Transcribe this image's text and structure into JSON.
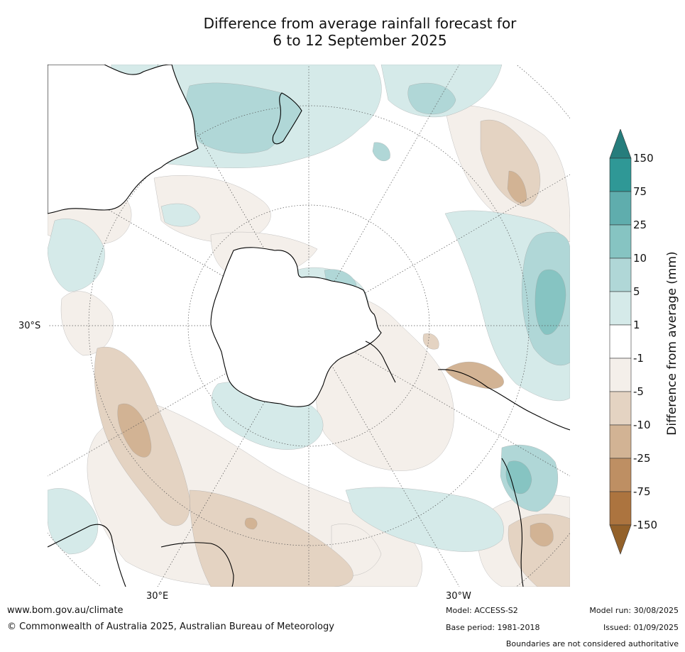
{
  "title": {
    "line1": "Difference from average rainfall forecast for",
    "line2": "6 to 12 September 2025"
  },
  "map": {
    "projection": "south-polar stereographic",
    "lat_label": "30°S",
    "lon_labels": {
      "east": "30°E",
      "west": "30°W"
    },
    "colors": {
      "plus_150": "#267d7c",
      "plus_75": "#2f9896",
      "plus_25": "#5fadad",
      "plus_10": "#86c4c2",
      "plus_5": "#b0d7d7",
      "plus_1": "#d5eae9",
      "neutral": "#ffffff",
      "minus_1": "#f4efea",
      "minus_5": "#e4d3c2",
      "minus_10": "#d2b394",
      "minus_25": "#be8f63",
      "minus_75": "#ac743f",
      "minus_150": "#93612a"
    }
  },
  "colorbar": {
    "title": "Difference from average (mm)",
    "ticks": [
      "150",
      "75",
      "25",
      "10",
      "5",
      "1",
      "-1",
      "-5",
      "-10",
      "-25",
      "-75",
      "-150"
    ]
  },
  "footer": {
    "website": "www.bom.gov.au/climate",
    "copyright": "© Commonwealth of Australia 2025, Australian Bureau of Meteorology",
    "model": "Model: ACCESS-S2",
    "base_period": "Base period: 1981-2018",
    "model_run": "Model run: 30/08/2025",
    "issued": "Issued: 01/09/2025",
    "boundaries_note": "Boundaries are not considered authoritative"
  }
}
